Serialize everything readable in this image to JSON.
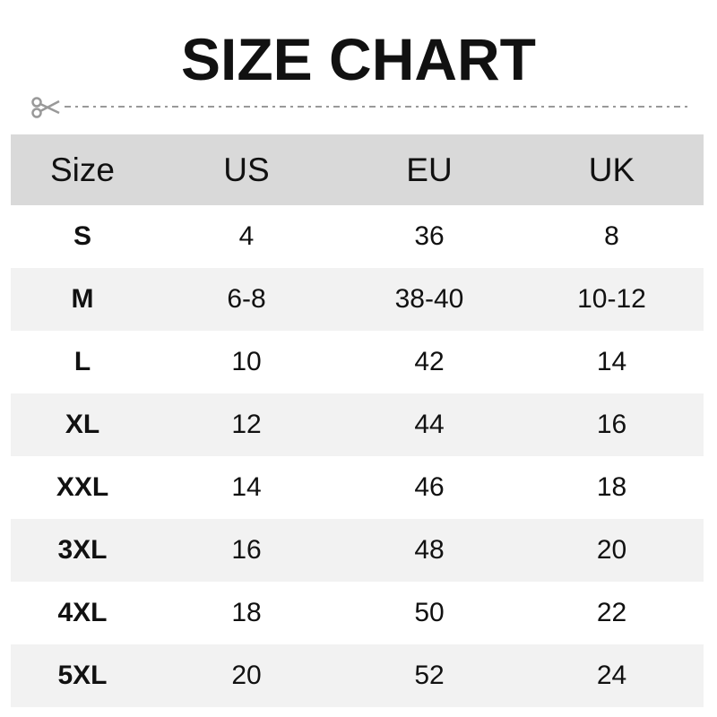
{
  "title": "SIZE CHART",
  "icons": {
    "cut": "scissors-icon"
  },
  "colors": {
    "header_bg": "#d9d9d9",
    "alt_row_bg": "#f2f2f2",
    "dash": "#999999"
  },
  "table": {
    "headers": [
      "Size",
      "US",
      "EU",
      "UK"
    ],
    "rows": [
      [
        "S",
        "4",
        "36",
        "8"
      ],
      [
        "M",
        "6-8",
        "38-40",
        "10-12"
      ],
      [
        "L",
        "10",
        "42",
        "14"
      ],
      [
        "XL",
        "12",
        "44",
        "16"
      ],
      [
        "XXL",
        "14",
        "46",
        "18"
      ],
      [
        "3XL",
        "16",
        "48",
        "20"
      ],
      [
        "4XL",
        "18",
        "50",
        "22"
      ],
      [
        "5XL",
        "20",
        "52",
        "24"
      ]
    ]
  }
}
